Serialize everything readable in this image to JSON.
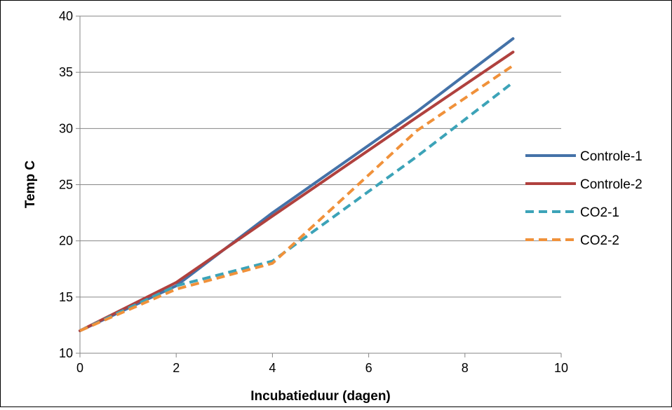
{
  "chart_data": {
    "type": "line",
    "title": "",
    "xlabel": "Incubatieduur (dagen)",
    "ylabel": "Temp C",
    "xlim": [
      0,
      10
    ],
    "ylim": [
      10,
      40
    ],
    "xticks": [
      0,
      2,
      4,
      6,
      8,
      10
    ],
    "yticks": [
      10,
      15,
      20,
      25,
      30,
      35,
      40
    ],
    "grid": "horizontal",
    "legend_position": "right",
    "series": [
      {
        "name": "Controle-1",
        "color": "#4472A8",
        "dashed": false,
        "x": [
          0,
          2,
          4,
          7,
          9
        ],
        "y": [
          12.0,
          16.0,
          22.5,
          31.5,
          38.0
        ]
      },
      {
        "name": "Controle-2",
        "color": "#B0413E",
        "dashed": false,
        "x": [
          0,
          2,
          4,
          7,
          9
        ],
        "y": [
          12.0,
          16.3,
          22.2,
          31.0,
          36.8
        ]
      },
      {
        "name": "CO2-1",
        "color": "#3CA3B8",
        "dashed": true,
        "x": [
          0,
          2,
          4,
          7,
          9
        ],
        "y": [
          12.0,
          16.0,
          18.2,
          27.5,
          34.1
        ]
      },
      {
        "name": "CO2-2",
        "color": "#F0913A",
        "dashed": true,
        "x": [
          0,
          2,
          4,
          7,
          9
        ],
        "y": [
          12.0,
          15.7,
          18.0,
          29.8,
          35.6
        ]
      }
    ]
  }
}
